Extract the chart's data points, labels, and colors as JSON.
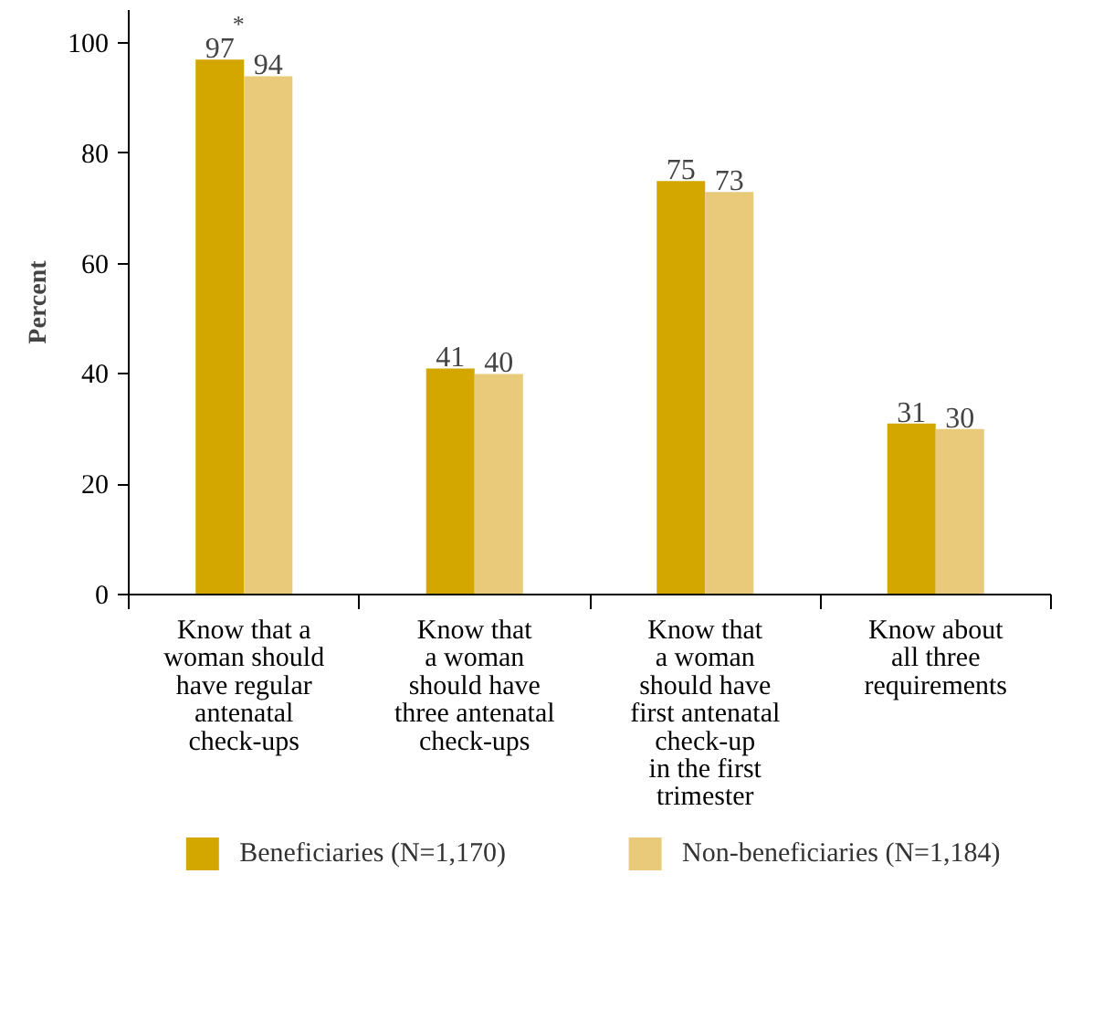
{
  "chart_data": {
    "type": "bar",
    "ylabel": "Percent",
    "categories": [
      "Know that a\nwoman should\nhave regular\nantenatal\ncheck-ups",
      "Know that\na woman\nshould have\nthree antenatal\ncheck-ups",
      "Know that\na woman\nshould have\nfirst antenatal\ncheck-up\nin the first\ntrimester",
      "Know about\nall three\nrequirements"
    ],
    "series": [
      {
        "name": "Beneficiaries (N=1,170)",
        "color": "#d4a600",
        "values": [
          97,
          41,
          75,
          31
        ]
      },
      {
        "name": "Non-beneficiaries (N=1,184)",
        "color": "#e9c97a",
        "values": [
          94,
          40,
          73,
          30
        ]
      }
    ],
    "ylim": [
      0,
      106
    ],
    "yticks": [
      0,
      20,
      40,
      60,
      80,
      100
    ],
    "grid": false,
    "legend": "bottom",
    "data_labels": true,
    "annotations": [
      {
        "text": "*",
        "x": "Know that a\nwoman should\nhave regular\nantenatal\ncheck-ups",
        "y": 97
      }
    ]
  }
}
